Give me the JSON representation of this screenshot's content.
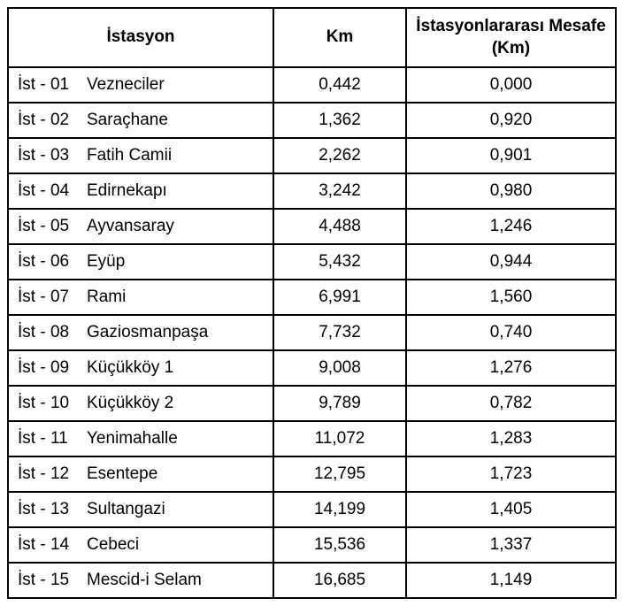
{
  "headers": {
    "station": "İstasyon",
    "km": "Km",
    "distance": "İstasyonlararası Mesafe (Km)"
  },
  "rows": [
    {
      "code": "İst - 01",
      "name": "Vezneciler",
      "km": "0,442",
      "dist": "0,000"
    },
    {
      "code": "İst - 02",
      "name": "Saraçhane",
      "km": "1,362",
      "dist": "0,920"
    },
    {
      "code": "İst - 03",
      "name": "Fatih Camii",
      "km": "2,262",
      "dist": "0,901"
    },
    {
      "code": "İst - 04",
      "name": "Edirnekapı",
      "km": "3,242",
      "dist": "0,980"
    },
    {
      "code": "İst - 05",
      "name": "Ayvansaray",
      "km": "4,488",
      "dist": "1,246"
    },
    {
      "code": "İst - 06",
      "name": "Eyüp",
      "km": "5,432",
      "dist": "0,944"
    },
    {
      "code": "İst - 07",
      "name": "Rami",
      "km": "6,991",
      "dist": "1,560"
    },
    {
      "code": "İst - 08",
      "name": "Gaziosmanpaşa",
      "km": "7,732",
      "dist": "0,740"
    },
    {
      "code": "İst - 09",
      "name": "Küçükköy 1",
      "km": "9,008",
      "dist": "1,276"
    },
    {
      "code": "İst - 10",
      "name": "Küçükköy 2",
      "km": "9,789",
      "dist": "0,782"
    },
    {
      "code": "İst - 11",
      "name": "Yenimahalle",
      "km": "11,072",
      "dist": "1,283"
    },
    {
      "code": "İst - 12",
      "name": "Esentepe",
      "km": "12,795",
      "dist": "1,723"
    },
    {
      "code": "İst - 13",
      "name": "Sultangazi",
      "km": "14,199",
      "dist": "1,405"
    },
    {
      "code": "İst - 14",
      "name": "Cebeci",
      "km": "15,536",
      "dist": "1,337"
    },
    {
      "code": "İst - 15",
      "name": "Mescid-i Selam",
      "km": "16,685",
      "dist": "1,149"
    }
  ]
}
